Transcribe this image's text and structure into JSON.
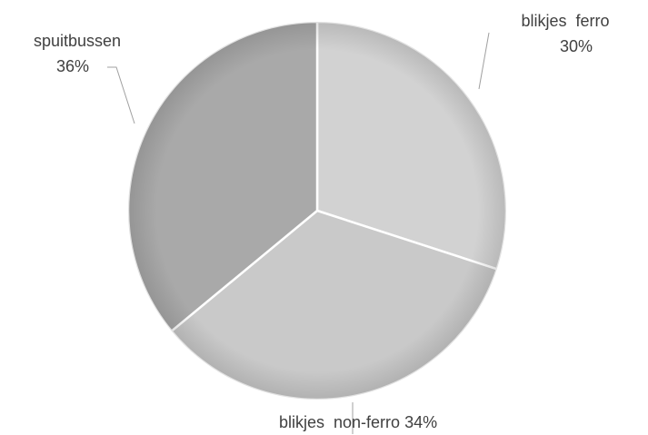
{
  "chart_data": {
    "type": "pie",
    "categories": [
      "blikjes  ferro",
      "blikjes  non-ferro",
      "spuitbussen"
    ],
    "values": [
      30,
      34,
      36
    ],
    "value_labels": [
      "30%",
      "34%",
      "36%"
    ],
    "colors": [
      "#d2d2d2",
      "#c9c9c9",
      "#a9a9a9"
    ]
  }
}
